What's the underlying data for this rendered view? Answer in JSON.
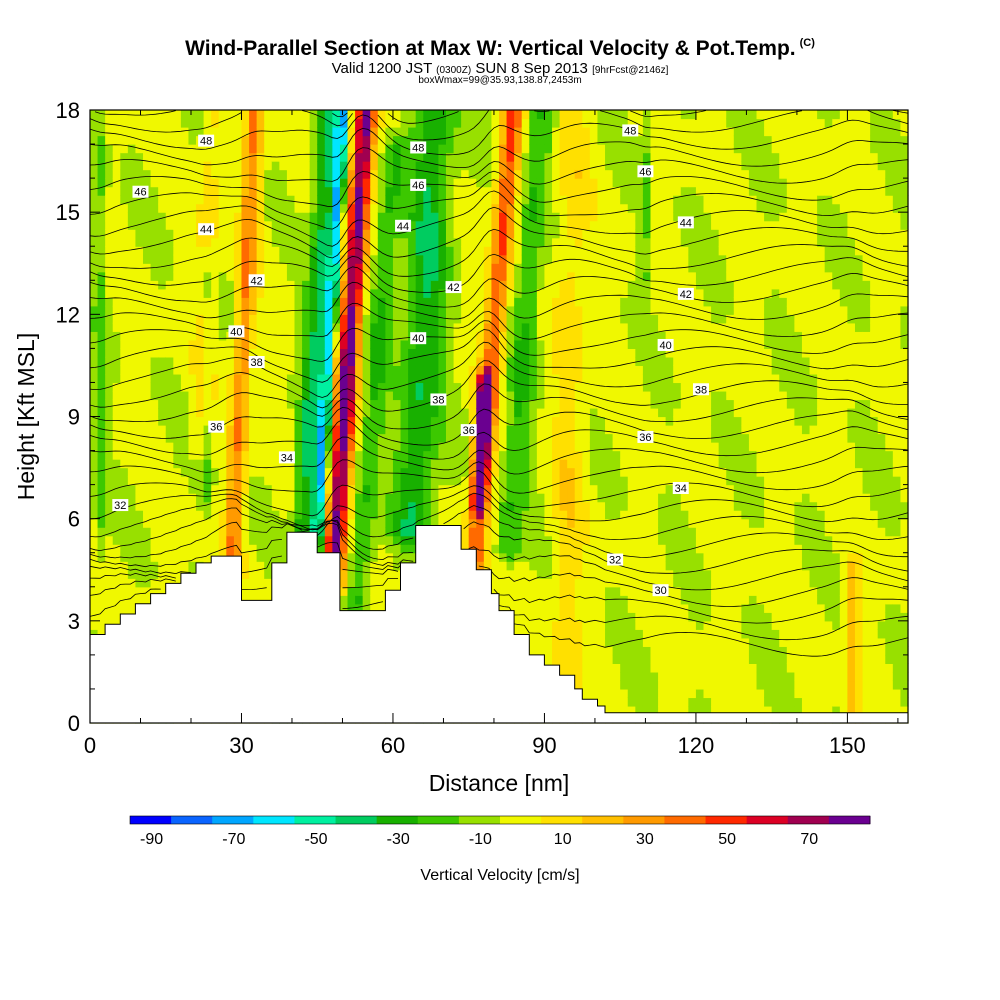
{
  "title": {
    "main": "Wind-Parallel Section at Max W: Vertical Velocity & Pot.Temp.",
    "copyright": "(C)",
    "valid_prefix": "Valid 1200 JST",
    "utc": "(0300Z)",
    "date": "SUN 8 Sep 2013",
    "forecast": "[9hrFcst@2146z]",
    "subtitle": "boxWmax=99@35.93,138.87,2453m"
  },
  "chart_data": {
    "type": "heatmap",
    "xlabel": "Distance [nm]",
    "ylabel": "Height [Kft MSL]",
    "xlim": [
      0,
      162
    ],
    "ylim": [
      0,
      18
    ],
    "x_ticks": [
      0,
      30,
      60,
      90,
      120,
      150
    ],
    "y_ticks": [
      0,
      3,
      6,
      9,
      12,
      15,
      18
    ],
    "colorbar": {
      "title": "Vertical Velocity [cm/s]",
      "tick_labels": [
        "-90",
        "-70",
        "-50",
        "-30",
        "-10",
        "10",
        "30",
        "50",
        "70"
      ],
      "levels": [
        -90,
        -80,
        -70,
        -60,
        -50,
        -40,
        -30,
        -20,
        -10,
        0,
        10,
        20,
        30,
        40,
        50,
        60,
        70,
        80
      ],
      "colors": [
        "#0000ff",
        "#0a64ff",
        "#00a6ff",
        "#00e6ff",
        "#00f0a0",
        "#00cc60",
        "#18b000",
        "#3cc800",
        "#98e000",
        "#f0f800",
        "#ffe000",
        "#ffbf00",
        "#ff9a00",
        "#ff6a00",
        "#ff2800",
        "#dc0024",
        "#a00050",
        "#6a0090"
      ]
    },
    "w_features": [
      {
        "x": 2,
        "z_bottom": 5.0,
        "z_top": 18,
        "tilt": 0.0,
        "w": -14,
        "width": 1.3
      },
      {
        "x": 22,
        "z_bottom": 8.0,
        "z_top": 18,
        "tilt": 0.22,
        "w": 14,
        "width": 2.0
      },
      {
        "x": 28,
        "z_bottom": 4.5,
        "z_top": 18,
        "tilt": 0.35,
        "w": 38,
        "width": 1.8
      },
      {
        "x": 23,
        "z_bottom": 6.5,
        "z_top": 13.5,
        "tilt": 0.0,
        "w": -14,
        "width": 1.2
      },
      {
        "x": 42,
        "z_bottom": 5.0,
        "z_top": 18,
        "tilt": 0.42,
        "w": -35,
        "width": 2.2
      },
      {
        "x": 45,
        "z_bottom": 5.3,
        "z_top": 18,
        "tilt": 0.4,
        "w": -58,
        "width": 1.2
      },
      {
        "x": 48,
        "z_bottom": 4.0,
        "z_top": 18,
        "tilt": 0.47,
        "w": 82,
        "width": 2.1
      },
      {
        "x": 53,
        "z_bottom": 3.5,
        "z_top": 17.0,
        "tilt": 0.55,
        "w": -22,
        "width": 2.4
      },
      {
        "x": 64,
        "z_bottom": 5.5,
        "z_top": 18,
        "tilt": 0.35,
        "w": -32,
        "width": 4.2
      },
      {
        "x": 76,
        "z_bottom": 4.5,
        "z_top": 18,
        "tilt": 0.58,
        "w": 50,
        "width": 2.0
      },
      {
        "x": 77,
        "z_bottom": 6.5,
        "z_top": 10.0,
        "tilt": 0.3,
        "w": 65,
        "width": 1.4
      },
      {
        "x": 83,
        "z_bottom": 5.0,
        "z_top": 18,
        "tilt": 0.5,
        "w": -22,
        "width": 2.6
      },
      {
        "x": 94,
        "z_bottom": 0.3,
        "z_top": 18,
        "tilt": 0.1,
        "w": 14,
        "width": 3.2
      },
      {
        "x": 110,
        "z_bottom": 13.0,
        "z_top": 18,
        "tilt": 0.0,
        "w": -14,
        "width": 1.0
      },
      {
        "x": 151,
        "z_bottom": 0.3,
        "z_top": 4.5,
        "tilt": 0.0,
        "w": 25,
        "width": 1.6
      }
    ],
    "terrain_nm": [
      0,
      1.5,
      3,
      4.5,
      6,
      7.5,
      9,
      10.5,
      12,
      13.5,
      15,
      16.5,
      18,
      19.5,
      21,
      22.5,
      24,
      25.5,
      27,
      28.5,
      30,
      31.5,
      33,
      34.5,
      36,
      37.5,
      39,
      40.5,
      42,
      43.5,
      45,
      46.5,
      48,
      49.5,
      51,
      52.5,
      54,
      55.5,
      57,
      58.5,
      60,
      61.5,
      63,
      64.5,
      66,
      67.5,
      69,
      70.5,
      72,
      73.5,
      75,
      76.5,
      78,
      79.5,
      81,
      82.5,
      84,
      85.5,
      87,
      88.5,
      90,
      91.5,
      93,
      94.5,
      96,
      97.5,
      99,
      100.5,
      102,
      162
    ],
    "terrain_kft": [
      2.6,
      2.6,
      2.9,
      2.9,
      3.2,
      3.2,
      3.5,
      3.5,
      3.8,
      3.8,
      4.1,
      4.1,
      4.4,
      4.4,
      4.7,
      4.7,
      4.9,
      4.9,
      4.9,
      4.9,
      3.6,
      3.6,
      3.6,
      3.6,
      4.7,
      4.7,
      5.6,
      5.6,
      5.6,
      5.6,
      5.0,
      5.0,
      5.0,
      3.3,
      3.3,
      3.3,
      3.3,
      3.3,
      3.3,
      3.9,
      3.9,
      4.7,
      4.7,
      5.8,
      5.8,
      5.8,
      5.8,
      5.8,
      5.8,
      5.1,
      5.1,
      4.5,
      4.5,
      3.8,
      3.3,
      3.3,
      2.6,
      2.6,
      2.0,
      2.0,
      1.7,
      1.7,
      1.4,
      1.4,
      1.0,
      0.7,
      0.7,
      0.5,
      0.3,
      0.3
    ],
    "theta_labels": [
      {
        "text": "48",
        "x": 23,
        "y": 17.1
      },
      {
        "text": "46",
        "x": 10,
        "y": 15.6
      },
      {
        "text": "44",
        "x": 23,
        "y": 14.5
      },
      {
        "text": "42",
        "x": 33,
        "y": 13.0
      },
      {
        "text": "40",
        "x": 29,
        "y": 11.5
      },
      {
        "text": "38",
        "x": 33,
        "y": 10.6
      },
      {
        "text": "36",
        "x": 25,
        "y": 8.7
      },
      {
        "text": "34",
        "x": 39,
        "y": 7.8
      },
      {
        "text": "32",
        "x": 6,
        "y": 6.4
      },
      {
        "text": "48",
        "x": 65,
        "y": 16.9
      },
      {
        "text": "46",
        "x": 65,
        "y": 15.8
      },
      {
        "text": "44",
        "x": 62,
        "y": 14.6
      },
      {
        "text": "42",
        "x": 72,
        "y": 12.8
      },
      {
        "text": "40",
        "x": 65,
        "y": 11.3
      },
      {
        "text": "38",
        "x": 69,
        "y": 9.5
      },
      {
        "text": "36",
        "x": 75,
        "y": 8.6
      },
      {
        "text": "48",
        "x": 107,
        "y": 17.4
      },
      {
        "text": "46",
        "x": 110,
        "y": 16.2
      },
      {
        "text": "44",
        "x": 118,
        "y": 14.7
      },
      {
        "text": "42",
        "x": 118,
        "y": 12.6
      },
      {
        "text": "40",
        "x": 114,
        "y": 11.1
      },
      {
        "text": "38",
        "x": 121,
        "y": 9.8
      },
      {
        "text": "36",
        "x": 110,
        "y": 8.4
      },
      {
        "text": "34",
        "x": 117,
        "y": 6.9
      },
      {
        "text": "32",
        "x": 104,
        "y": 4.8
      },
      {
        "text": "30",
        "x": 113,
        "y": 3.9
      }
    ]
  }
}
